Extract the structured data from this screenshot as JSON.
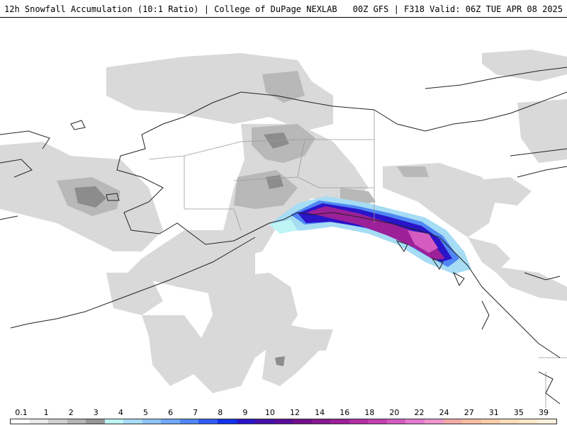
{
  "header": {
    "title": "12h Snowfall Accumulation (10:1 Ratio) | College of DuPage NEXLAB",
    "run_info": "00Z GFS | F318 Valid: 06Z TUE APR 08 2025"
  },
  "legend": {
    "labels": [
      "0.1",
      "1",
      "2",
      "3",
      "4",
      "5",
      "6",
      "7",
      "8",
      "9",
      "10",
      "12",
      "14",
      "16",
      "18",
      "20",
      "22",
      "24",
      "27",
      "31",
      "35",
      "39"
    ],
    "colors": [
      "#ffffff",
      "#e8e8e8",
      "#cfcfcf",
      "#b4b4b4",
      "#969696",
      "#bff4f4",
      "#a6dcf4",
      "#8cc4f8",
      "#6fa8f8",
      "#4f86f4",
      "#2f5cf4",
      "#1232e8",
      "#2a14c8",
      "#4410a8",
      "#5a0c9a",
      "#70108c",
      "#861890",
      "#9c2098",
      "#b030a4",
      "#c440b0",
      "#d45cc0",
      "#e27ad0",
      "#ec96cc",
      "#f2aaa8",
      "#f4bca0",
      "#f6cca8",
      "#f8dcb8",
      "#fae6c8",
      "#fdf0dc"
    ]
  }
}
